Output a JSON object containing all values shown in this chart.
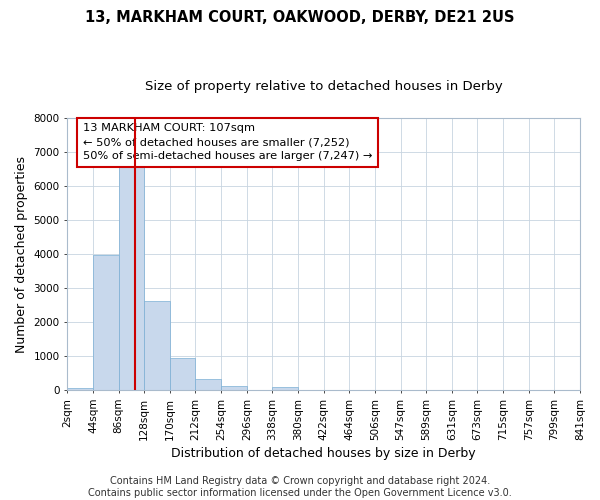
{
  "title": "13, MARKHAM COURT, OAKWOOD, DERBY, DE21 2US",
  "subtitle": "Size of property relative to detached houses in Derby",
  "xlabel": "Distribution of detached houses by size in Derby",
  "ylabel": "Number of detached properties",
  "bin_labels": [
    "2sqm",
    "44sqm",
    "86sqm",
    "128sqm",
    "170sqm",
    "212sqm",
    "254sqm",
    "296sqm",
    "338sqm",
    "380sqm",
    "422sqm",
    "464sqm",
    "506sqm",
    "547sqm",
    "589sqm",
    "631sqm",
    "673sqm",
    "715sqm",
    "757sqm",
    "799sqm",
    "841sqm"
  ],
  "bar_values": [
    60,
    3980,
    6560,
    2620,
    960,
    330,
    120,
    0,
    90,
    0,
    0,
    0,
    0,
    0,
    0,
    0,
    0,
    0,
    0,
    0
  ],
  "bar_color": "#c8d8ec",
  "bar_edge_color": "#7bafd4",
  "annotation_line1": "13 MARKHAM COURT: 107sqm",
  "annotation_line2": "← 50% of detached houses are smaller (7,252)",
  "annotation_line3": "50% of semi-detached houses are larger (7,247) →",
  "vline_x": 2.64,
  "vline_color": "#cc0000",
  "ylim": [
    0,
    8000
  ],
  "yticks": [
    0,
    1000,
    2000,
    3000,
    4000,
    5000,
    6000,
    7000,
    8000
  ],
  "footer_text": "Contains HM Land Registry data © Crown copyright and database right 2024.\nContains public sector information licensed under the Open Government Licence v3.0.",
  "background_color": "#ffffff",
  "plot_background": "#ffffff",
  "grid_color": "#c8d4e0",
  "title_fontsize": 10.5,
  "subtitle_fontsize": 9.5,
  "axis_label_fontsize": 9,
  "tick_fontsize": 7.5,
  "footer_fontsize": 7
}
